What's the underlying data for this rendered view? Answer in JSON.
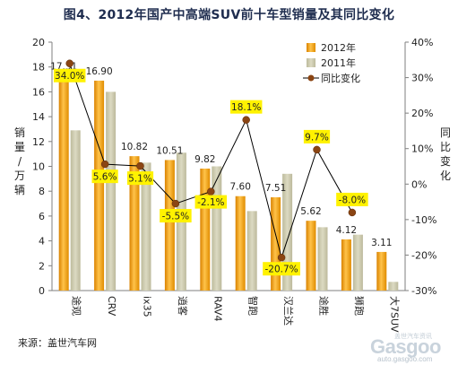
{
  "chart_data": {
    "type": "bar",
    "title": "图4、2012年国产中高端SUV前十车型销量及其同比变化",
    "ylabel": "销量/万辆",
    "y2label": "同比变化",
    "categories": [
      "途观",
      "CRV",
      "ix35",
      "逍客",
      "RAV4",
      "智跑",
      "汉兰达",
      "途胜",
      "狮跑",
      "大7SUV"
    ],
    "ylim": [
      0,
      20
    ],
    "y_ticks": [
      "0",
      "2",
      "4",
      "6",
      "8",
      "10",
      "12",
      "14",
      "16",
      "18",
      "20"
    ],
    "y2lim": [
      -30,
      40
    ],
    "y2_ticks": [
      "-30%",
      "-20%",
      "-10%",
      "0%",
      "10%",
      "20%",
      "30%",
      "40%"
    ],
    "series": [
      {
        "name": "2012年",
        "kind": "bar",
        "color": "#f3a112",
        "values": [
          17.31,
          16.9,
          10.82,
          10.51,
          9.82,
          7.6,
          7.51,
          5.62,
          4.12,
          3.11
        ],
        "labels": [
          "17.31",
          "16.90",
          "10.82",
          "10.51",
          "9.82",
          "7.60",
          "7.51",
          "5.62",
          "4.12",
          "3.11"
        ]
      },
      {
        "name": "2011年",
        "kind": "bar",
        "color": "#c9c7ab",
        "values": [
          12.9,
          16.0,
          10.3,
          11.1,
          10.0,
          6.4,
          9.4,
          5.1,
          4.5,
          0.7
        ]
      },
      {
        "name": "同比变化",
        "kind": "line",
        "axis": "right",
        "color": "#8b4513",
        "values": [
          34.0,
          5.6,
          5.1,
          -5.5,
          -2.1,
          18.1,
          -20.7,
          9.7,
          -8.0,
          null
        ],
        "labels": [
          "34.0%",
          "5.6%",
          "5.1%",
          "-5.5%",
          "-2.1%",
          "18.1%",
          "-20.7%",
          "9.7%",
          "-8.0%",
          ""
        ]
      }
    ],
    "legend_position": "top-right",
    "grid": false
  },
  "source": "来源：盖世汽车网",
  "watermark": {
    "logo": "Gasgoo",
    "url": "auto.gasgoo.com",
    "cn": "盖世汽车资讯"
  },
  "colors": {
    "bar2012": "#f3a112",
    "bar2011": "#c9c7ab",
    "line": "#8b4513",
    "label_bg": "#fff200",
    "title": "#1f2d4f"
  }
}
